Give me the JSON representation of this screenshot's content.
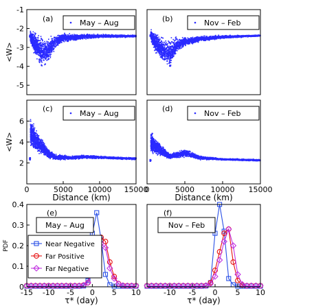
{
  "chart_data": [
    {
      "type": "scatter",
      "panel": "(a)",
      "legend": "May – Aug",
      "ylabel": "<W>",
      "xlim": [
        0,
        15000
      ],
      "ylim": [
        -5.5,
        -1
      ],
      "yticks": [
        "-1",
        "-2",
        "-3",
        "-4",
        "-5"
      ],
      "yticks_values": [
        -1,
        -2,
        -3,
        -4,
        -5
      ],
      "series": [
        {
          "name": "May – Aug",
          "envelope": [
            [
              500,
              -3.0,
              -1.9
            ],
            [
              1000,
              -3.7,
              -1.8
            ],
            [
              2000,
              -4.6,
              -1.9
            ],
            [
              3000,
              -4.3,
              -2.0
            ],
            [
              4000,
              -3.2,
              -2.1
            ],
            [
              5000,
              -2.9,
              -2.1
            ],
            [
              7000,
              -2.7,
              -2.2
            ],
            [
              10000,
              -2.55,
              -2.25
            ],
            [
              15000,
              -2.5,
              -2.3
            ]
          ],
          "count": 2600
        }
      ]
    },
    {
      "type": "scatter",
      "panel": "(b)",
      "legend": "Nov – Feb",
      "xlim": [
        0,
        15000
      ],
      "ylim": [
        -5.5,
        -1
      ],
      "series": [
        {
          "name": "Nov – Feb",
          "envelope": [
            [
              500,
              -2.8,
              -1.9
            ],
            [
              1000,
              -3.5,
              -1.9
            ],
            [
              2000,
              -4.2,
              -2.0
            ],
            [
              3000,
              -4.6,
              -2.1
            ],
            [
              4000,
              -3.5,
              -2.2
            ],
            [
              5000,
              -3.1,
              -2.3
            ],
            [
              7000,
              -2.8,
              -2.3
            ],
            [
              10000,
              -2.6,
              -2.3
            ],
            [
              15000,
              -2.45,
              -2.3
            ]
          ],
          "count": 2600
        }
      ]
    },
    {
      "type": "scatter",
      "panel": "(c)",
      "legend": "May – Aug",
      "ylabel": "<W>",
      "xlabel": "Distance (km)",
      "xlim": [
        0,
        15000
      ],
      "ylim": [
        0,
        8
      ],
      "xticks": [
        "0",
        "5000",
        "10000",
        "15000"
      ],
      "xticks_values": [
        0,
        5000,
        10000,
        15000
      ],
      "yticks": [
        "2",
        "4",
        "6"
      ],
      "yticks_values": [
        2,
        4,
        6
      ],
      "series": [
        {
          "name": "May – Aug",
          "envelope": [
            [
              500,
              2.2,
              7.5
            ],
            [
              1000,
              2.2,
              6.5
            ],
            [
              2000,
              2.2,
              5.0
            ],
            [
              3000,
              2.2,
              3.6
            ],
            [
              4000,
              2.1,
              3.0
            ],
            [
              6000,
              2.2,
              2.8
            ],
            [
              8000,
              2.3,
              2.9
            ],
            [
              11000,
              2.3,
              2.7
            ],
            [
              15000,
              2.2,
              2.6
            ]
          ],
          "count": 2600
        }
      ]
    },
    {
      "type": "scatter",
      "panel": "(d)",
      "legend": "Nov – Feb",
      "xlabel": "Distance (km)",
      "xlim": [
        0,
        15000
      ],
      "ylim": [
        0,
        8
      ],
      "xticks": [
        "0",
        "5000",
        "10000",
        "15000"
      ],
      "xticks_values": [
        0,
        5000,
        10000,
        15000
      ],
      "series": [
        {
          "name": "Nov – Feb",
          "envelope": [
            [
              500,
              2.2,
              5.8
            ],
            [
              1000,
              2.3,
              5.0
            ],
            [
              2000,
              2.3,
              4.0
            ],
            [
              3000,
              2.2,
              3.0
            ],
            [
              5000,
              2.3,
              3.6
            ],
            [
              7000,
              2.2,
              2.8
            ],
            [
              10000,
              2.2,
              2.5
            ],
            [
              15000,
              2.1,
              2.4
            ]
          ],
          "count": 2600
        }
      ]
    },
    {
      "type": "line",
      "panel": "(e)",
      "legend": "May – Aug",
      "ylabel": "PDF",
      "xlabel": "τ* (day)",
      "xlim": [
        -15,
        10
      ],
      "ylim": [
        0,
        0.4
      ],
      "xticks": [
        "-15",
        "-10",
        "-5",
        "0",
        "5",
        "10"
      ],
      "xticks_values": [
        -15,
        -10,
        -5,
        0,
        5,
        10
      ],
      "yticks": [
        "0",
        "0.1",
        "0.2",
        "0.3",
        "0.4"
      ],
      "yticks_values": [
        0,
        0.1,
        0.2,
        0.3,
        0.4
      ],
      "x": [
        -15,
        -14,
        -13,
        -12,
        -11,
        -10,
        -9,
        -8,
        -7,
        -6,
        -5,
        -4,
        -3,
        -2,
        -1,
        0,
        1,
        2,
        3,
        4,
        5,
        6,
        7,
        8,
        9,
        10
      ],
      "series": [
        {
          "name": "Near Negative",
          "color": "#2a50e6",
          "marker": "square",
          "values": [
            0.003,
            0.003,
            0.003,
            0.003,
            0.003,
            0.003,
            0.003,
            0.003,
            0.003,
            0.003,
            0.003,
            0.003,
            0.003,
            0.004,
            0.03,
            0.26,
            0.36,
            0.23,
            0.06,
            0.01,
            0.003,
            0.003,
            0.003,
            0.003,
            0.003,
            0.003
          ]
        },
        {
          "name": "Far Positive",
          "color": "#e61010",
          "marker": "circle",
          "values": [
            0.005,
            0.005,
            0.005,
            0.005,
            0.005,
            0.005,
            0.005,
            0.005,
            0.005,
            0.005,
            0.005,
            0.005,
            0.005,
            0.008,
            0.02,
            0.09,
            0.17,
            0.24,
            0.22,
            0.12,
            0.05,
            0.015,
            0.006,
            0.005,
            0.005,
            0.005
          ]
        },
        {
          "name": "Far Negative",
          "color": "#c030e0",
          "marker": "diamond",
          "values": [
            0.005,
            0.005,
            0.005,
            0.005,
            0.005,
            0.005,
            0.005,
            0.005,
            0.005,
            0.005,
            0.005,
            0.005,
            0.005,
            0.008,
            0.02,
            0.07,
            0.14,
            0.21,
            0.19,
            0.09,
            0.04,
            0.015,
            0.006,
            0.005,
            0.005,
            0.005
          ]
        }
      ],
      "legend_entries": [
        "Near Negative",
        "Far Positive",
        "Far Negative"
      ]
    },
    {
      "type": "line",
      "panel": "(f)",
      "legend": "Nov – Feb",
      "xlabel": "τ* (day)",
      "xlim": [
        -15,
        10
      ],
      "ylim": [
        0,
        0.4
      ],
      "xticks": [
        "-10",
        "-5",
        "0",
        "5",
        "10"
      ],
      "xticks_values": [
        -10,
        -5,
        0,
        5,
        10
      ],
      "x": [
        -15,
        -14,
        -13,
        -12,
        -11,
        -10,
        -9,
        -8,
        -7,
        -6,
        -5,
        -4,
        -3,
        -2,
        -1,
        0,
        1,
        2,
        3,
        4,
        5,
        6,
        7,
        8,
        9,
        10
      ],
      "series": [
        {
          "name": "Near Negative",
          "color": "#2a50e6",
          "marker": "square",
          "values": [
            0.003,
            0.003,
            0.003,
            0.003,
            0.003,
            0.003,
            0.003,
            0.003,
            0.003,
            0.003,
            0.003,
            0.003,
            0.003,
            0.004,
            0.02,
            0.26,
            0.4,
            0.27,
            0.04,
            0.01,
            0.003,
            0.003,
            0.003,
            0.003,
            0.003,
            0.003
          ]
        },
        {
          "name": "Far Positive",
          "color": "#e61010",
          "marker": "circle",
          "values": [
            0.005,
            0.005,
            0.005,
            0.005,
            0.005,
            0.005,
            0.005,
            0.005,
            0.005,
            0.005,
            0.005,
            0.005,
            0.005,
            0.006,
            0.02,
            0.08,
            0.17,
            0.26,
            0.28,
            0.12,
            0.03,
            0.008,
            0.005,
            0.005,
            0.005,
            0.005
          ]
        },
        {
          "name": "Far Negative",
          "color": "#c030e0",
          "marker": "diamond",
          "values": [
            0.005,
            0.005,
            0.005,
            0.005,
            0.005,
            0.005,
            0.005,
            0.005,
            0.005,
            0.005,
            0.005,
            0.005,
            0.005,
            0.006,
            0.015,
            0.05,
            0.13,
            0.22,
            0.28,
            0.2,
            0.06,
            0.012,
            0.005,
            0.005,
            0.005,
            0.005
          ]
        }
      ]
    }
  ]
}
